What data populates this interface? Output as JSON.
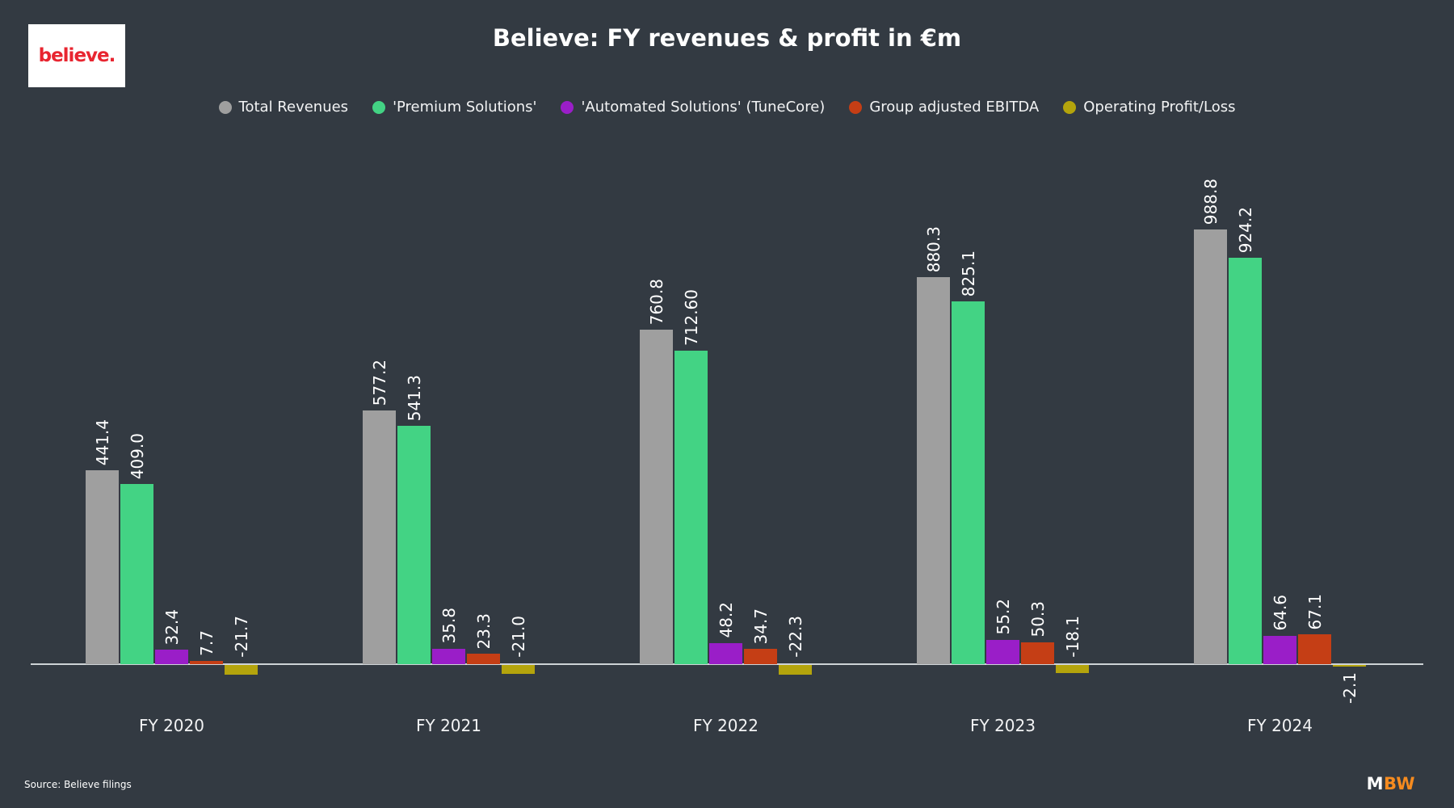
{
  "header": {
    "title": "Believe: FY revenues & profit in €m",
    "logo_text": "believe."
  },
  "legend": {
    "items": [
      {
        "label": "Total Revenues",
        "color": "#9f9f9f"
      },
      {
        "label": "'Premium Solutions'",
        "color": "#43d384"
      },
      {
        "label": "'Automated Solutions' (TuneCore)",
        "color": "#9a1ec8"
      },
      {
        "label": "Group adjusted EBITDA",
        "color": "#c53e15"
      },
      {
        "label": "Operating Profit/Loss",
        "color": "#b4a40c"
      }
    ]
  },
  "chart_data": {
    "type": "bar",
    "title": "Believe: FY revenues & profit in €m",
    "categories": [
      "FY 2020",
      "FY 2021",
      "FY 2022",
      "FY 2023",
      "FY 2024"
    ],
    "series": [
      {
        "name": "Total Revenues",
        "color": "#9f9f9f",
        "values": [
          441.4,
          577.2,
          760.8,
          880.3,
          988.8
        ],
        "value_labels": [
          "441.4",
          "577.2",
          "760.8",
          "880.3",
          "988.8"
        ]
      },
      {
        "name": "'Premium Solutions'",
        "color": "#43d384",
        "values": [
          409.0,
          541.3,
          712.6,
          825.1,
          924.2
        ],
        "value_labels": [
          "409.0",
          "541.3",
          "712.60",
          "825.1",
          "924.2"
        ]
      },
      {
        "name": "'Automated Solutions' (TuneCore)",
        "color": "#9a1ec8",
        "values": [
          32.4,
          35.8,
          48.2,
          55.2,
          64.6
        ],
        "value_labels": [
          "32.4",
          "35.8",
          "48.2",
          "55.2",
          "64.6"
        ]
      },
      {
        "name": "Group adjusted EBITDA",
        "color": "#c53e15",
        "values": [
          7.7,
          23.3,
          34.7,
          50.3,
          67.1
        ],
        "value_labels": [
          "7.7",
          "23.3",
          "34.7",
          "50.3",
          "67.1"
        ]
      },
      {
        "name": "Operating Profit/Loss",
        "color": "#b4a40c",
        "values": [
          -21.7,
          -21.0,
          -22.3,
          -18.1,
          -2.1
        ],
        "value_labels": [
          "-21.7",
          "-21.0",
          "-22.3",
          "-18.1",
          "-2.1"
        ]
      }
    ],
    "ylim": [
      -40,
      1050
    ],
    "grid": false,
    "legend_position": "top",
    "value_labels_rotated": true,
    "label_below_axis": [
      {
        "series": 4,
        "category": 4
      }
    ],
    "background": "#333a42",
    "axis_line_color": "#ced3d6"
  },
  "footer": {
    "source": "Source: Believe filings",
    "brand_m": "M",
    "brand_bw": "BW"
  }
}
